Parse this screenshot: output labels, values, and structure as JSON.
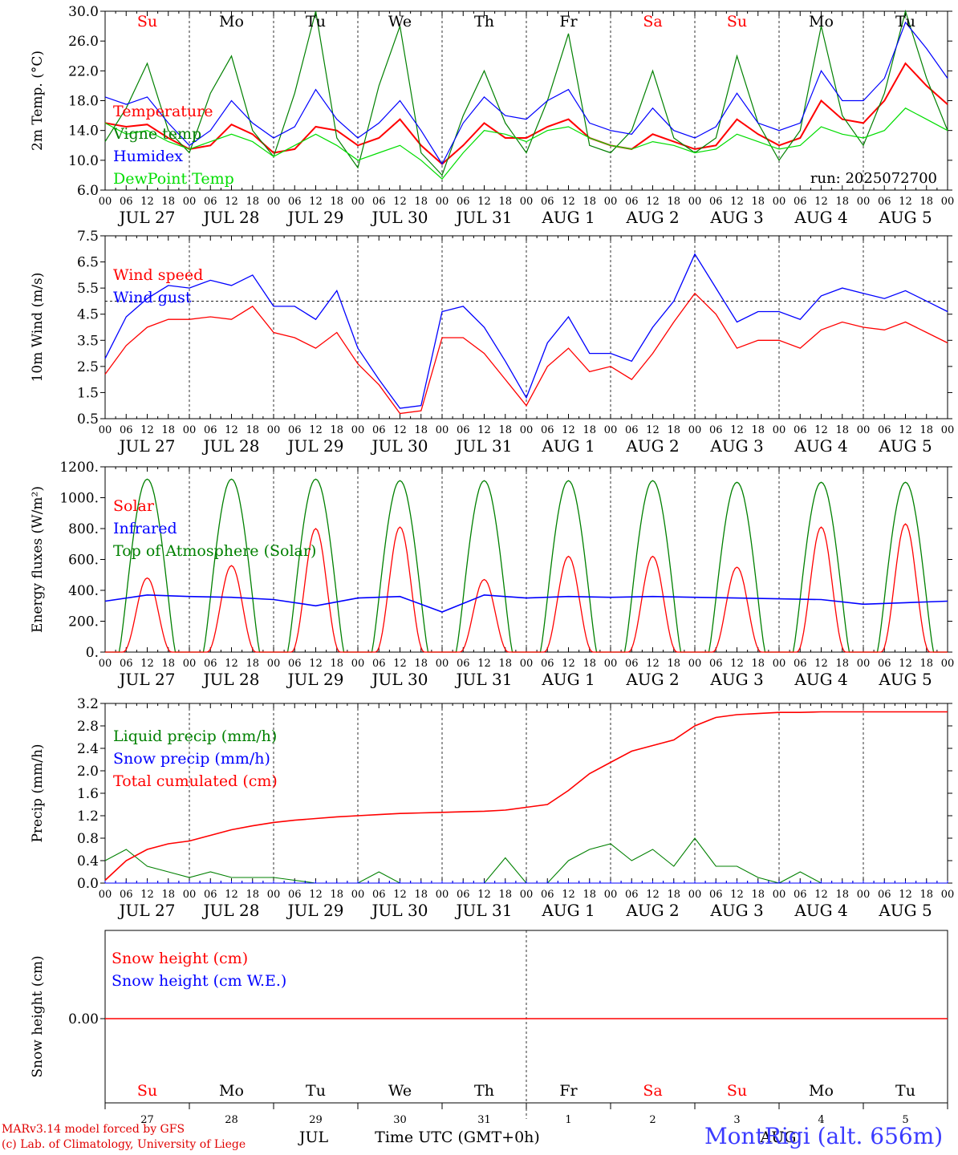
{
  "footer": {
    "model_line": "MARv3.14 model forced by GFS",
    "lab_line": "(c) Lab. of Climatology, University of Liege",
    "location": "MontRigi (alt. 656m)",
    "month_label": "JUL",
    "month_label_2": "AUG",
    "xlabel": "Time UTC (GMT+0h)"
  },
  "run_label": "run: 2025072700",
  "days": {
    "weekdays": [
      "Su",
      "Mo",
      "Tu",
      "We",
      "Th",
      "Fr",
      "Sa",
      "Su",
      "Mo",
      "Tu"
    ],
    "weekend_color": "#ff0000",
    "weekday_color": "#000000",
    "date_labels": [
      "JUL 27",
      "JUL 28",
      "JUL 29",
      "JUL 30",
      "JUL 31",
      "AUG  1",
      "AUG  2",
      "AUG  3",
      "AUG  4",
      "AUG  5"
    ],
    "day_numbers": [
      "27",
      "28",
      "29",
      "30",
      "31",
      "1",
      "2",
      "3",
      "4",
      "5"
    ],
    "hour_ticks": [
      "00",
      "06",
      "12",
      "18"
    ]
  },
  "colors": {
    "red": "#ff0000",
    "green": "#008000",
    "blue": "#0000ff",
    "lightgreen": "#00dd00",
    "axis": "#000000"
  },
  "chart_data": [
    {
      "type": "line",
      "id": "temp",
      "ylabel": "2m Temp. (°C)",
      "ylim": [
        6,
        30
      ],
      "yticks": [
        "6.0",
        "10.0",
        "14.0",
        "18.0",
        "22.0",
        "26.0",
        "30.0"
      ],
      "x_hours": [
        0,
        6,
        12,
        18,
        24,
        30,
        36,
        42,
        48,
        54,
        60,
        66,
        72,
        78,
        84,
        90,
        96,
        102,
        108,
        114,
        120,
        126,
        132,
        138,
        144,
        150,
        156,
        162,
        168,
        174,
        180,
        186,
        192,
        198,
        204,
        210,
        216,
        222,
        228,
        234,
        240
      ],
      "series": [
        {
          "name": "Temperature",
          "color": "red",
          "values": [
            15,
            14.5,
            14.8,
            13,
            11.5,
            12,
            14.8,
            13.5,
            11,
            11.5,
            14.5,
            14,
            12,
            13,
            15.5,
            12,
            9.5,
            12,
            15,
            13,
            13,
            14.5,
            15.5,
            13,
            12,
            11.5,
            13.5,
            12.5,
            11.5,
            12,
            15.5,
            13.5,
            12,
            13,
            18,
            15.5,
            15,
            18,
            23,
            20,
            17.5
          ]
        },
        {
          "name": "Vigne temp",
          "color": "green",
          "values": [
            12.5,
            17,
            23,
            14,
            11,
            19,
            24,
            14,
            10.5,
            19,
            30,
            13,
            9,
            20,
            28,
            11,
            8,
            16,
            22,
            15,
            11,
            18,
            27,
            12,
            11,
            14,
            22,
            13,
            11,
            13,
            24,
            15,
            10,
            14,
            28,
            16,
            12,
            19,
            30,
            21,
            14
          ]
        },
        {
          "name": "Humidex",
          "color": "blue",
          "values": [
            18.5,
            17.5,
            18.5,
            15,
            12,
            14,
            18,
            15,
            13,
            14.5,
            19.5,
            15.5,
            13,
            15,
            18,
            14,
            9.5,
            15,
            18.5,
            16,
            15.5,
            18,
            19.5,
            15,
            14,
            13.5,
            17,
            14,
            13,
            14.5,
            19,
            15,
            14,
            15,
            22,
            18,
            18,
            21,
            28.5,
            25,
            21
          ]
        },
        {
          "name": "DewPoint Temp",
          "color": "lightgreen",
          "values": [
            15,
            13.5,
            14,
            12.5,
            11.5,
            12.5,
            13.5,
            12.5,
            10.5,
            12,
            13.5,
            12,
            10,
            11,
            12,
            10,
            7.5,
            11,
            14,
            13.5,
            12.5,
            14,
            14.5,
            13,
            12,
            11.5,
            12.5,
            12,
            11,
            11.5,
            13.5,
            12.5,
            11.5,
            12,
            14.5,
            13.5,
            13,
            14,
            17,
            15.5,
            14
          ]
        }
      ]
    },
    {
      "type": "line",
      "id": "wind",
      "ylabel": "10m Wind (m/s)",
      "ylim": [
        0.5,
        7.5
      ],
      "yticks": [
        "0.5",
        "1.5",
        "2.5",
        "3.5",
        "4.5",
        "5.5",
        "6.5",
        "7.5"
      ],
      "reference_line": 5.0,
      "x_hours": [
        0,
        6,
        12,
        18,
        24,
        30,
        36,
        42,
        48,
        54,
        60,
        66,
        72,
        78,
        84,
        90,
        96,
        102,
        108,
        114,
        120,
        126,
        132,
        138,
        144,
        150,
        156,
        162,
        168,
        174,
        180,
        186,
        192,
        198,
        204,
        210,
        216,
        222,
        228,
        234,
        240
      ],
      "series": [
        {
          "name": "Wind speed",
          "color": "red",
          "values": [
            2.2,
            3.3,
            4,
            4.3,
            4.3,
            4.4,
            4.3,
            4.8,
            3.8,
            3.6,
            3.2,
            3.8,
            2.6,
            1.8,
            0.7,
            0.8,
            3.6,
            3.6,
            3,
            2,
            1,
            2.5,
            3.2,
            2.3,
            2.5,
            2,
            3,
            4.2,
            5.3,
            4.5,
            3.2,
            3.5,
            3.5,
            3.2,
            3.9,
            4.2,
            4,
            3.9,
            4.2,
            3.8,
            3.4
          ]
        },
        {
          "name": "Wind gust",
          "color": "blue",
          "values": [
            2.8,
            4.4,
            5.1,
            5.6,
            5.5,
            5.8,
            5.6,
            6,
            4.8,
            4.8,
            4.3,
            5.4,
            3.2,
            2,
            0.9,
            1,
            4.6,
            4.8,
            4,
            2.7,
            1.3,
            3.4,
            4.4,
            3,
            3,
            2.7,
            4,
            5,
            6.8,
            5.5,
            4.2,
            4.6,
            4.6,
            4.3,
            5.2,
            5.5,
            5.3,
            5.1,
            5.4,
            5,
            4.6
          ]
        }
      ]
    },
    {
      "type": "line",
      "id": "energy",
      "ylabel": "Energy fluxes (W/m²)",
      "ylim": [
        0,
        1200
      ],
      "yticks": [
        "0.",
        "200.",
        "400.",
        "600.",
        "800.",
        "1000.",
        "1200."
      ],
      "series": [
        {
          "name": "Solar",
          "color": "red",
          "day_peaks": [
            480,
            560,
            800,
            810,
            470,
            620,
            620,
            550,
            810,
            830
          ]
        },
        {
          "name": "Infrared",
          "color": "blue",
          "values": [
            330,
            370,
            360,
            355,
            340,
            300,
            350,
            360,
            260,
            370,
            350,
            360,
            355,
            360,
            355,
            350,
            345,
            340,
            310,
            320,
            330
          ]
        },
        {
          "name": "Top of Atmosphere (Solar)",
          "color": "green",
          "day_peaks": [
            1120,
            1120,
            1120,
            1110,
            1110,
            1110,
            1110,
            1100,
            1100,
            1100
          ]
        }
      ]
    },
    {
      "type": "line",
      "id": "precip",
      "ylabel": "Precip (mm/h)",
      "ylim": [
        0,
        3.2
      ],
      "yticks": [
        "0.0",
        "0.4",
        "0.8",
        "1.2",
        "1.6",
        "2.0",
        "2.4",
        "2.8",
        "3.2"
      ],
      "x_hours": [
        0,
        6,
        12,
        18,
        24,
        30,
        36,
        42,
        48,
        54,
        60,
        66,
        72,
        78,
        84,
        90,
        96,
        102,
        108,
        114,
        120,
        126,
        132,
        138,
        144,
        150,
        156,
        162,
        168,
        174,
        180,
        186,
        192,
        198,
        204,
        210,
        216,
        222,
        228,
        234,
        240
      ],
      "series": [
        {
          "name": "Liquid precip (mm/h)",
          "color": "green",
          "values": [
            0.4,
            0.6,
            0.3,
            0.2,
            0.1,
            0.2,
            0.1,
            0.1,
            0.1,
            0.05,
            0,
            0,
            0,
            0.2,
            0,
            0,
            0,
            0,
            0,
            0.45,
            0,
            0,
            0.4,
            0.6,
            0.7,
            0.4,
            0.6,
            0.3,
            0.8,
            0.3,
            0.3,
            0.1,
            0,
            0.2,
            0,
            0,
            0,
            0,
            0,
            0,
            0
          ]
        },
        {
          "name": "Snow precip (mm/h)",
          "color": "blue",
          "values": [
            0,
            0,
            0,
            0,
            0,
            0,
            0,
            0,
            0,
            0,
            0,
            0,
            0,
            0,
            0,
            0,
            0,
            0,
            0,
            0,
            0,
            0,
            0,
            0,
            0,
            0,
            0,
            0,
            0,
            0,
            0,
            0,
            0,
            0,
            0,
            0,
            0,
            0,
            0,
            0,
            0
          ]
        },
        {
          "name": "Total cumulated (cm)",
          "color": "red",
          "values": [
            0.05,
            0.4,
            0.6,
            0.7,
            0.75,
            0.85,
            0.95,
            1.02,
            1.08,
            1.12,
            1.15,
            1.18,
            1.2,
            1.22,
            1.24,
            1.25,
            1.26,
            1.27,
            1.28,
            1.3,
            1.35,
            1.4,
            1.65,
            1.95,
            2.15,
            2.35,
            2.45,
            2.55,
            2.8,
            2.95,
            3.0,
            3.02,
            3.04,
            3.04,
            3.05,
            3.05,
            3.05,
            3.05,
            3.05,
            3.05,
            3.05
          ]
        }
      ]
    },
    {
      "type": "line",
      "id": "snow",
      "ylabel": "Snow height (cm)",
      "yticks": [
        "0.00"
      ],
      "series": [
        {
          "name": "Snow height (cm)",
          "color": "red",
          "values": [
            0,
            0
          ]
        },
        {
          "name": "Snow height (cm W.E.)",
          "color": "blue",
          "values": [
            0,
            0
          ]
        }
      ]
    }
  ]
}
